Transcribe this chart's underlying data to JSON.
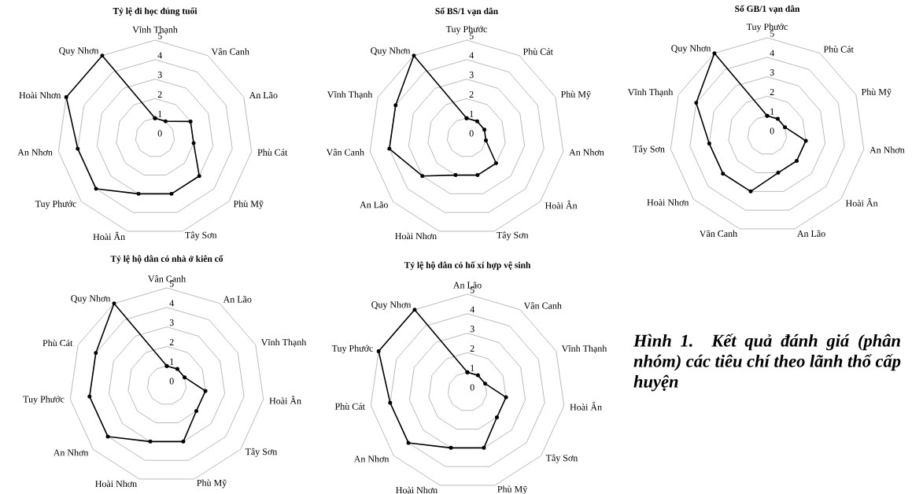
{
  "chart_data": [
    {
      "type": "radar",
      "title": "Tỷ lệ đi học đúng tuổi",
      "categories": [
        "Vĩnh Thạnh",
        "Vân Canh",
        "An Lão",
        "Phù Cát",
        "Phù Mỹ",
        "Tây Sơn",
        "Hoài Ân",
        "Tuy Phước",
        "An Nhơn",
        "Hoài Nhơn",
        "Quy Nhơn"
      ],
      "series": [
        {
          "color": "#000000",
          "values": [
            1,
            1,
            2,
            2,
            3,
            3,
            3,
            4,
            4,
            5,
            5
          ]
        }
      ],
      "ylim": [
        0,
        5
      ],
      "yticks": [
        0,
        1,
        2,
        3,
        4,
        5
      ],
      "grid": true,
      "marker": "circle",
      "line_style": "solid"
    },
    {
      "type": "radar",
      "title": "Số BS/1 vạn dân",
      "categories": [
        "Tuy Phước",
        "Phù Cát",
        "Phù Mỹ",
        "An Nhơn",
        "Hoài Ân",
        "Tây Sơn",
        "Hoài Nhơn",
        "An Lão",
        "Vân Canh",
        "Vĩnh Thạnh",
        "Quy Nhơn"
      ],
      "series": [
        {
          "color": "#000000",
          "values": [
            1,
            1,
            1,
            1,
            2,
            2,
            2,
            3,
            4,
            4,
            5
          ]
        }
      ],
      "ylim": [
        0,
        5
      ],
      "yticks": [
        0,
        1,
        2,
        3,
        4,
        5
      ],
      "grid": true,
      "marker": "circle",
      "line_style": "solid"
    },
    {
      "type": "radar",
      "title": "Số GB/1 vạn dân",
      "categories": [
        "Tuy Phước",
        "Phù Cát",
        "Phù Mỹ",
        "An Nhơn",
        "Hoài Ân",
        "An Lão",
        "Vân Canh",
        "Hoài Nhơn",
        "Tây Sơn",
        "Vĩnh Thạnh",
        "Quy Nhơn"
      ],
      "series": [
        {
          "color": "#000000",
          "values": [
            1,
            1,
            1,
            2,
            2,
            2,
            3,
            3,
            3,
            4,
            5
          ]
        }
      ],
      "ylim": [
        0,
        5
      ],
      "yticks": [
        0,
        1,
        2,
        3,
        4,
        5
      ],
      "grid": true,
      "marker": "circle",
      "line_style": "solid"
    },
    {
      "type": "radar",
      "title": "Tỷ lệ hộ dân có nhà ở kiên cố",
      "categories": [
        "Vân Canh",
        "An Lão",
        "Vĩnh Thạnh",
        "Hoài Ân",
        "Tây Sơn",
        "Phù Mỹ",
        "Hoài Nhơn",
        "An Nhơn",
        "Tuy Phước",
        "Phù Cát",
        "Quy Nhơn"
      ],
      "series": [
        {
          "color": "#000000",
          "values": [
            1,
            1,
            1,
            2,
            2,
            3,
            3,
            4,
            4,
            4,
            5
          ]
        }
      ],
      "ylim": [
        0,
        5
      ],
      "yticks": [
        0,
        1,
        2,
        3,
        4,
        5
      ],
      "grid": true,
      "marker": "circle",
      "line_style": "solid"
    },
    {
      "type": "radar",
      "title": "Tỷ lệ hộ dân có hố xí hợp vệ sinh",
      "categories": [
        "An Lão",
        "Vân Canh",
        "Vĩnh Thạnh",
        "Hoài Ân",
        "Tây Sơn",
        "Phù Mỹ",
        "Hoài Nhơn",
        "An Nhơn",
        "Phù Cát",
        "Tuy Phước",
        "Quy Nhơn"
      ],
      "series": [
        {
          "color": "#000000",
          "values": [
            1,
            1,
            1,
            2,
            2,
            3,
            3,
            4,
            4,
            5,
            5
          ]
        }
      ],
      "ylim": [
        0,
        5
      ],
      "yticks": [
        0,
        1,
        2,
        3,
        4,
        5
      ],
      "grid": true,
      "marker": "circle",
      "line_style": "solid",
      "annotations": [
        "Hình 1. Kết quả đánh giá (phân nhóm) các tiêu chí theo lãnh thổ cấp huyện"
      ]
    }
  ]
}
